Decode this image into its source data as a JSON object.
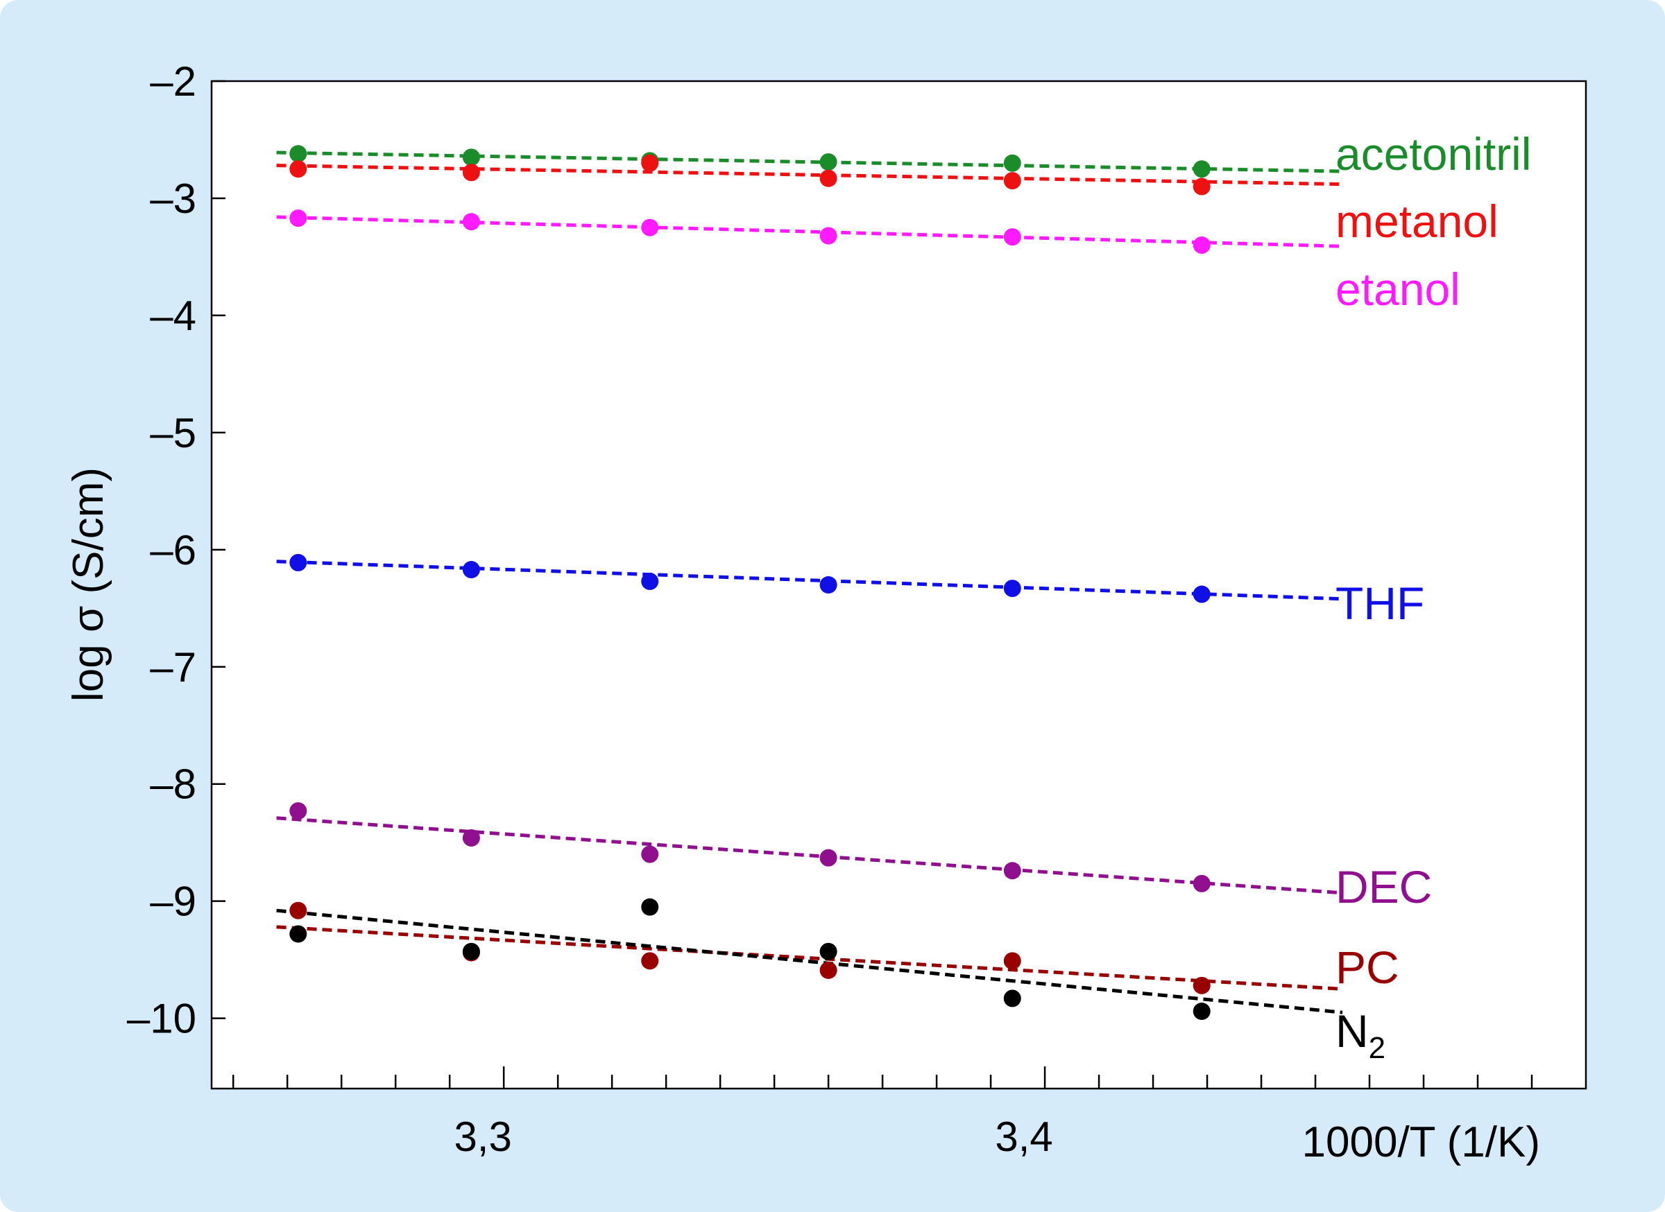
{
  "chart_data": {
    "type": "scatter",
    "xlabel": "1000/T (1/K)",
    "ylabel": "log σ (S/cm)",
    "xlim": [
      3.246,
      3.5
    ],
    "ylim": [
      -10.6,
      -2
    ],
    "x_ticks": [
      3.3,
      3.4
    ],
    "x_tick_labels": [
      "3,3",
      "3,4"
    ],
    "y_ticks": [
      -2,
      -3,
      -4,
      -5,
      -6,
      -7,
      -8,
      -9,
      -10
    ],
    "y_tick_labels": [
      "–2",
      "–3",
      "–4",
      "–5",
      "–6",
      "–7",
      "–8",
      "–9",
      "–10"
    ],
    "x": [
      3.262,
      3.294,
      3.327,
      3.36,
      3.394,
      3.429
    ],
    "fit_range": [
      3.258,
      3.455
    ],
    "grid": false,
    "legend": "series labels to the right of the lines",
    "series": [
      {
        "name": "acetonitril",
        "color": "#1a8c2a",
        "values": [
          -2.62,
          -2.65,
          -2.68,
          -2.69,
          -2.7,
          -2.75
        ],
        "fit": [
          -2.61,
          -2.77
        ]
      },
      {
        "name": "metanol",
        "color": "#ee1111",
        "values": [
          -2.75,
          -2.78,
          -2.7,
          -2.83,
          -2.85,
          -2.9
        ],
        "fit": [
          -2.72,
          -2.88
        ]
      },
      {
        "name": "etanol",
        "color": "#ff1aff",
        "values": [
          -3.17,
          -3.2,
          -3.25,
          -3.32,
          -3.33,
          -3.4
        ],
        "fit": [
          -3.16,
          -3.41
        ]
      },
      {
        "name": "THF",
        "color": "#1010e6",
        "values": [
          -6.11,
          -6.17,
          -6.27,
          -6.3,
          -6.33,
          -6.38
        ],
        "fit": [
          -6.1,
          -6.42
        ]
      },
      {
        "name": "DEC",
        "color": "#8f0f8f",
        "values": [
          -8.23,
          -8.46,
          -8.6,
          -8.63,
          -8.74,
          -8.85
        ],
        "fit": [
          -8.29,
          -8.93
        ]
      },
      {
        "name": "PC",
        "color": "#990000",
        "values": [
          -9.08,
          -9.44,
          -9.51,
          -9.59,
          -9.51,
          -9.72
        ],
        "fit": [
          -9.22,
          -9.75
        ]
      },
      {
        "name": "N2",
        "name_base": "N",
        "name_sub": "2",
        "color": "#000000",
        "values": [
          -9.28,
          -9.43,
          -9.05,
          -9.43,
          -9.83,
          -9.94
        ],
        "fit": [
          -9.08,
          -9.95
        ]
      }
    ]
  }
}
